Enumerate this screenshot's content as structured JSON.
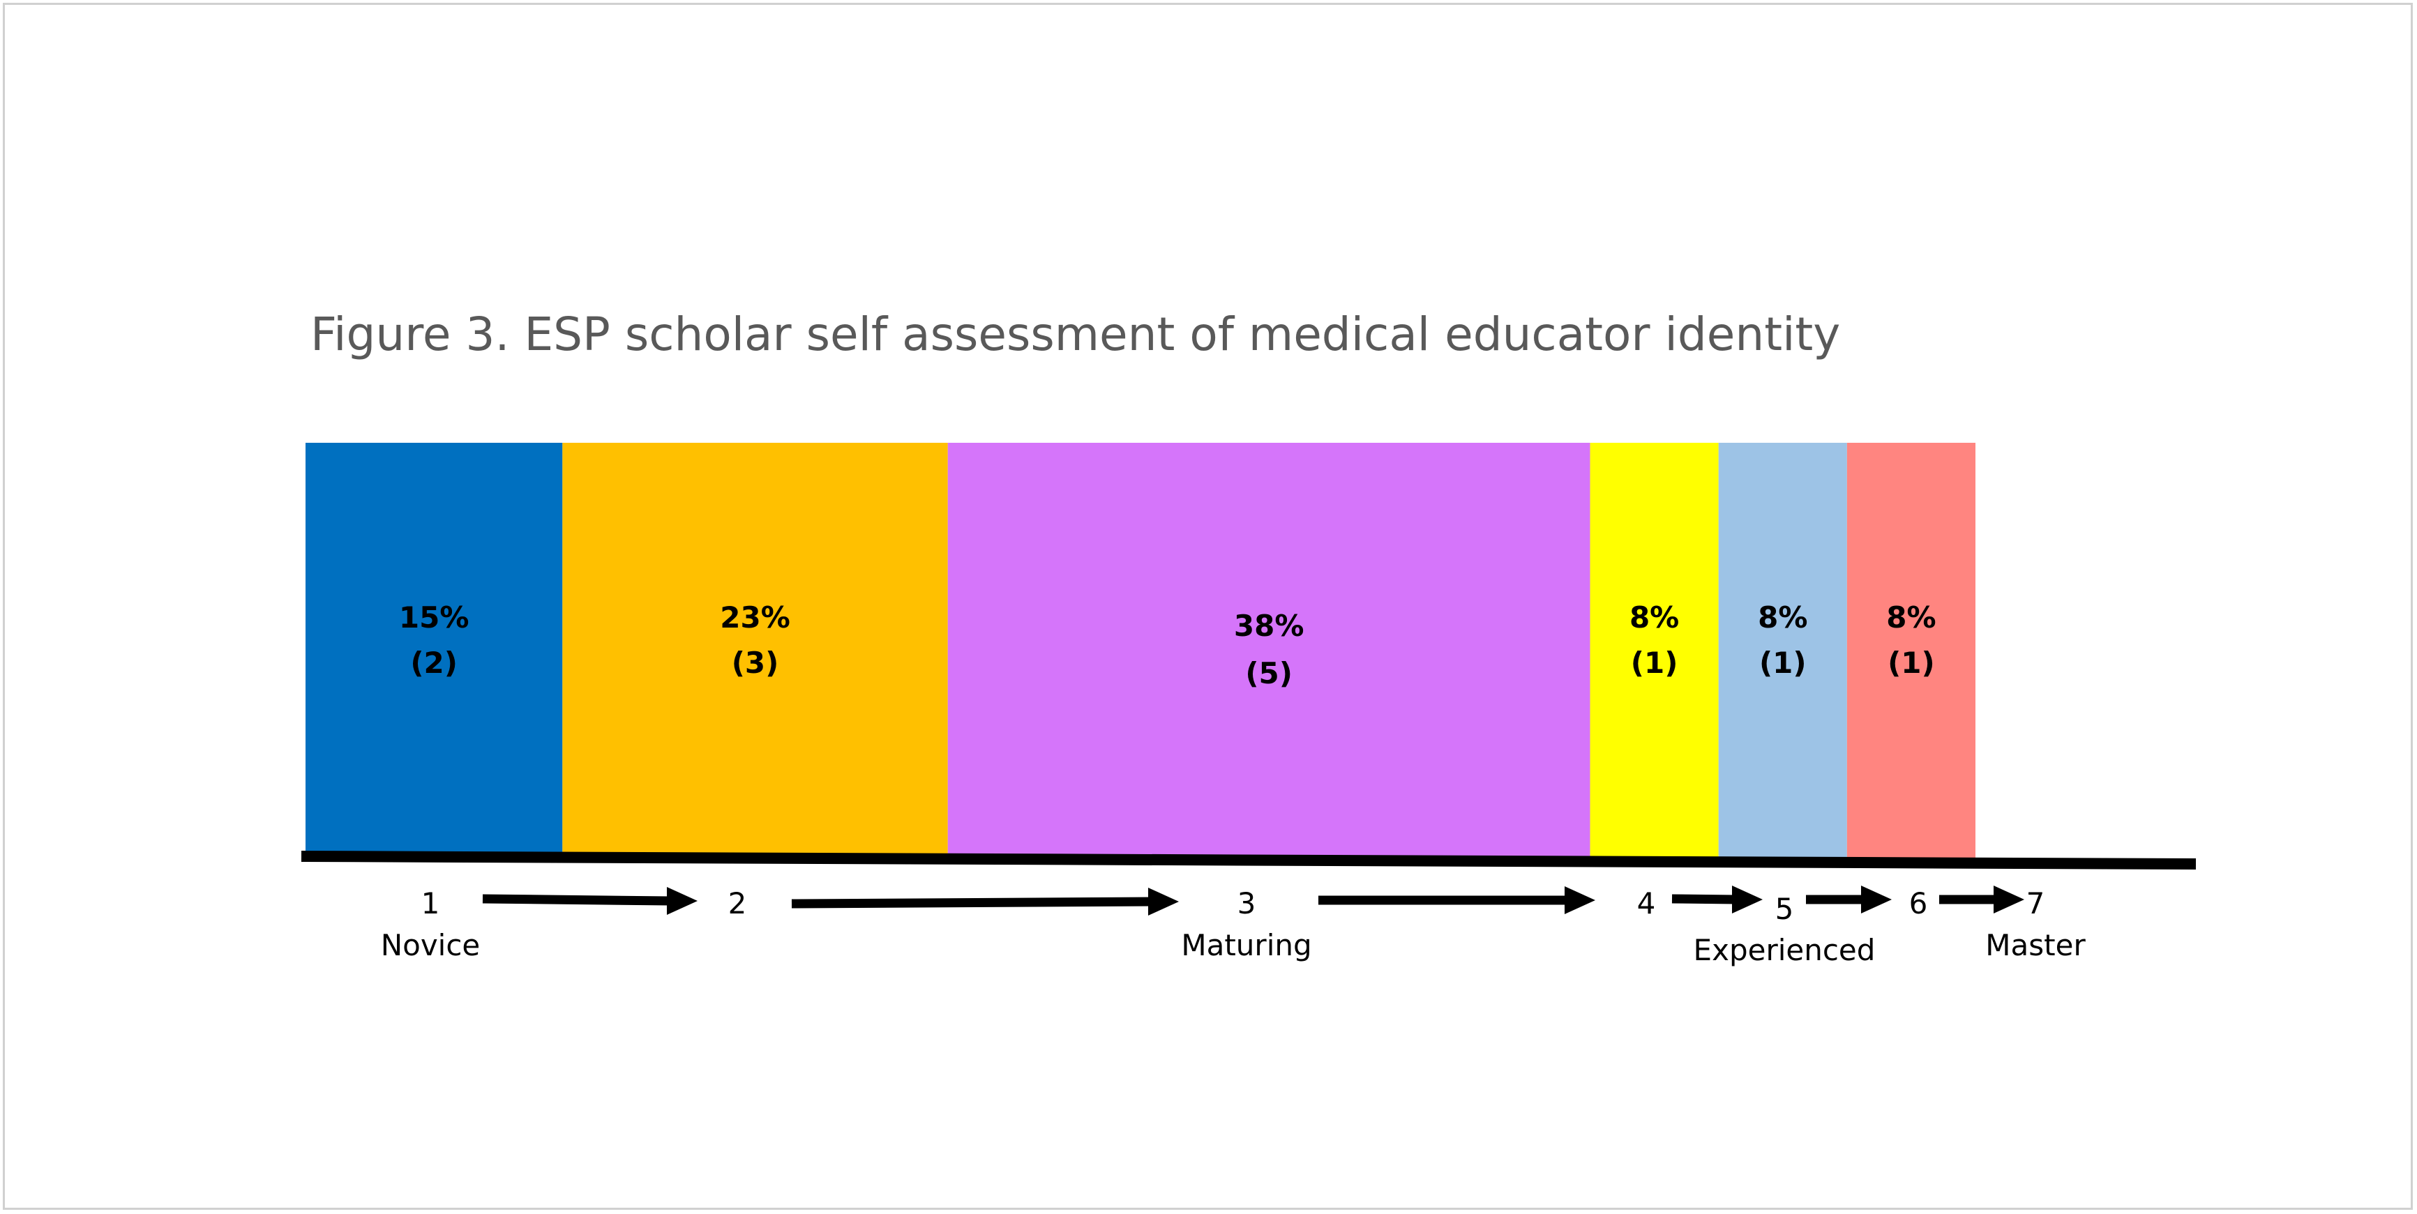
{
  "chart_data": {
    "type": "bar",
    "title": "Figure 3. ESP scholar self assessment of medical educator identity",
    "segments": [
      {
        "percent_label": "15%",
        "count_label": "(2)",
        "count": 2,
        "color": "#0070C0"
      },
      {
        "percent_label": "23%",
        "count_label": "(3)",
        "count": 3,
        "color": "#FFC000"
      },
      {
        "percent_label": "38%",
        "count_label": "(5)",
        "count": 5,
        "color": "#D575FA"
      },
      {
        "percent_label": "8%",
        "count_label": "(1)",
        "count": 1,
        "color": "#FFFF00"
      },
      {
        "percent_label": "8%",
        "count_label": "(1)",
        "count": 1,
        "color": "#9DC3E6"
      },
      {
        "percent_label": "8%",
        "count_label": "(1)",
        "count": 1,
        "color": "#FF8580"
      }
    ],
    "scale": [
      {
        "num": "1",
        "name": "Novice"
      },
      {
        "num": "2",
        "name": ""
      },
      {
        "num": "3",
        "name": "Maturing"
      },
      {
        "num": "4",
        "name": ""
      },
      {
        "num": "5",
        "name": "Experienced"
      },
      {
        "num": "6",
        "name": ""
      },
      {
        "num": "7",
        "name": "Master"
      }
    ]
  }
}
